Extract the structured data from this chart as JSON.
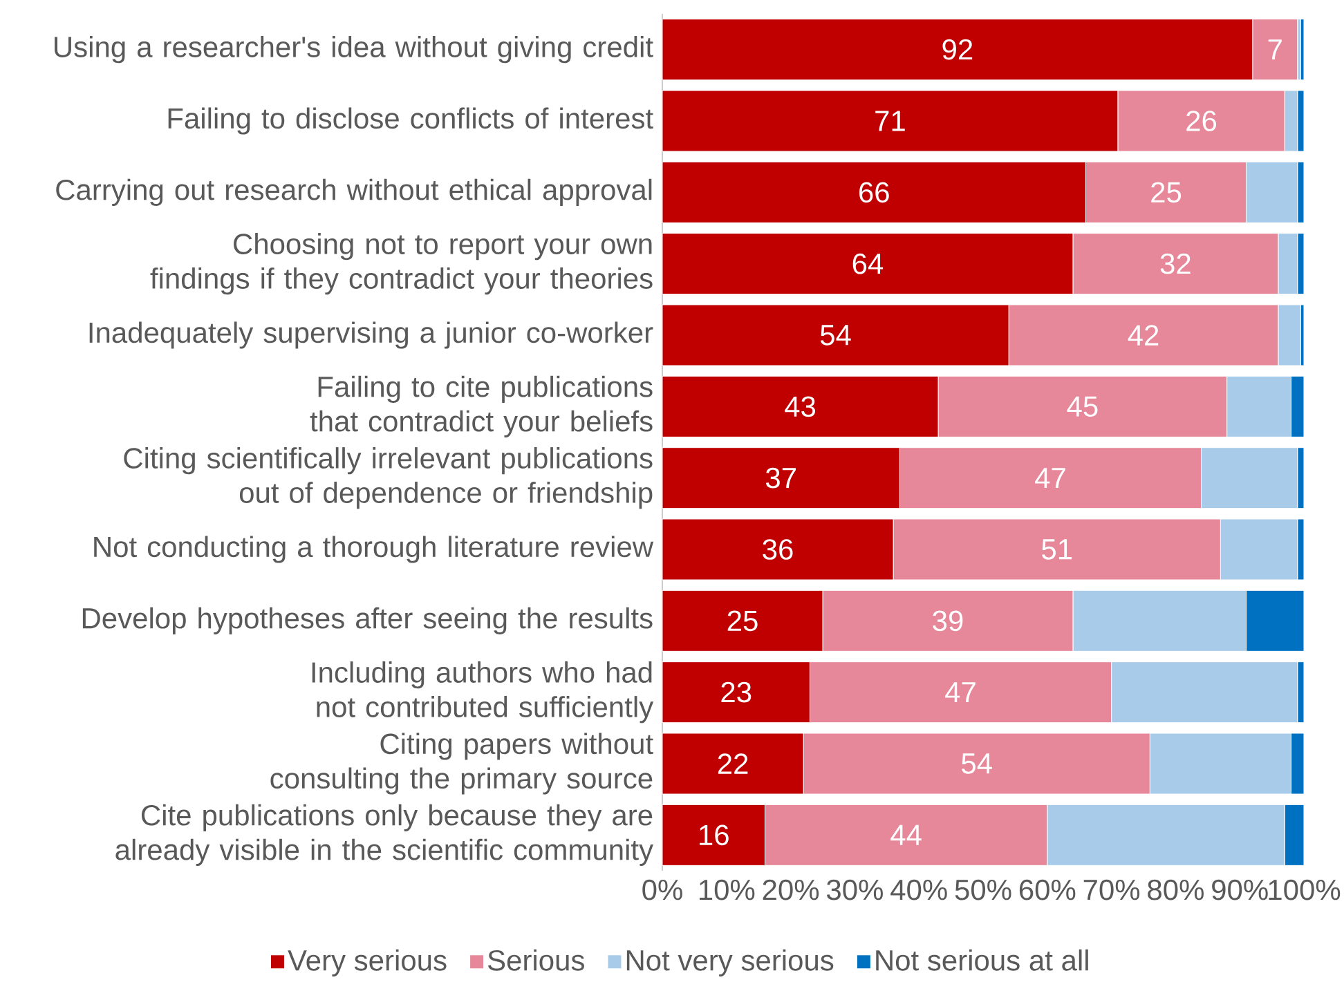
{
  "chart_data": {
    "type": "bar",
    "orientation": "horizontal",
    "stacked": true,
    "legend": "bottom",
    "categories": [
      "Using a researcher's idea without giving credit",
      "Failing to disclose conflicts of interest",
      "Carrying out research without ethical approval",
      "Choosing not to report your own findings if they contradict your theories",
      "Inadequately supervising a junior co-worker",
      "Failing to cite publications that contradict your beliefs",
      "Citing scientifically irrelevant publications out of dependence or friendship",
      "Not conducting a thorough literature review",
      "Develop hypotheses after seeing the results",
      "Including authors who had not contributed sufficiently",
      "Citing papers without consulting the primary source",
      "Cite publications only because they are already visible in the scientific community"
    ],
    "series": [
      {
        "name": "Very serious",
        "color": "#c00000",
        "values": [
          92,
          71,
          66,
          64,
          54,
          43,
          37,
          36,
          25,
          23,
          22,
          16
        ],
        "value_labels": [
          "92",
          "71",
          "66",
          "64",
          "54",
          "43",
          "37",
          "36",
          "25",
          "23",
          "22",
          "16"
        ]
      },
      {
        "name": "Serious",
        "color": "#e6889a",
        "values": [
          7,
          26,
          25,
          32,
          42,
          45,
          47,
          51,
          39,
          47,
          54,
          44
        ],
        "value_labels": [
          "7",
          "26",
          "25",
          "32",
          "42",
          "45",
          "47",
          "51",
          "39",
          "47",
          "54",
          "44"
        ]
      },
      {
        "name": "Not very serious",
        "color": "#a9cbea",
        "values": [
          0.5,
          2,
          8,
          3,
          3.5,
          10,
          15,
          12,
          27,
          29,
          22,
          37
        ]
      },
      {
        "name": "Not serious at all",
        "color": "#0070c0",
        "values": [
          0.5,
          1,
          1,
          1,
          0.5,
          2,
          1,
          1,
          9,
          1,
          2,
          3
        ]
      }
    ],
    "xlim": [
      0,
      100
    ],
    "xticks": [
      {
        "value": 0,
        "label": "0%"
      },
      {
        "value": 10,
        "label": "10%"
      },
      {
        "value": 20,
        "label": "20%"
      },
      {
        "value": 30,
        "label": "30%"
      },
      {
        "value": 40,
        "label": "40%"
      },
      {
        "value": 50,
        "label": "50%"
      },
      {
        "value": 60,
        "label": "60%"
      },
      {
        "value": 70,
        "label": "70%"
      },
      {
        "value": 80,
        "label": "80%"
      },
      {
        "value": 90,
        "label": "90%"
      },
      {
        "value": 100,
        "label": "100%"
      }
    ]
  }
}
